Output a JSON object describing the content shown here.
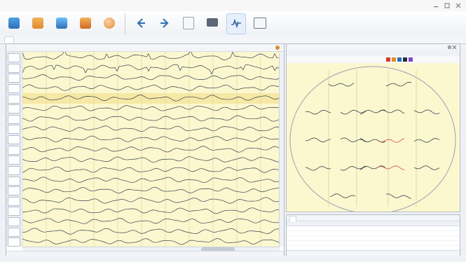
{
  "colors": {
    "accent": "#2f6fb5",
    "paper": "#fbf7cf",
    "highlight": "#f2e18f",
    "trace": "#1f2d3d",
    "trace_red": "#c83b2b",
    "marker_red": "#d13b2d",
    "marker_orange": "#e08a2f"
  },
  "menu": {
    "items": [
      "",
      "",
      "",
      "",
      "",
      "",
      "",
      ""
    ]
  },
  "toolbar": {
    "buttons": [
      {
        "label": "",
        "icon": "study-icon"
      },
      {
        "label": "",
        "icon": "upload-icon"
      },
      {
        "label": "",
        "icon": "report-icon"
      },
      {
        "label": "",
        "icon": "export-icon"
      },
      {
        "label": "",
        "icon": "patient-icon"
      },
      {
        "label": "",
        "icon": "arrow-left-icon"
      },
      {
        "label": "",
        "icon": "arrow-right-icon"
      },
      {
        "label": "",
        "icon": "document-icon"
      },
      {
        "label": "",
        "icon": "printer-icon"
      },
      {
        "label": "",
        "icon": "waveform-icon"
      },
      {
        "label": "",
        "icon": "window-icon"
      }
    ],
    "tab_label": ""
  },
  "eeg": {
    "controls_text": "",
    "channels": [
      "",
      "",
      "",
      "",
      "",
      "",
      "",
      "",
      "",
      "",
      "",
      "",
      "",
      "",
      "",
      "",
      "",
      "",
      ""
    ],
    "selected_channel_index": 4,
    "status_left": "",
    "status_right": ""
  },
  "topo": {
    "title": "",
    "subtitle": "",
    "controls_text": "",
    "scale_label": ""
  },
  "table": {
    "tabs": [
      "",
      ""
    ],
    "headers": [
      "",
      "",
      "",
      "",
      "",
      "",
      "",
      "",
      ""
    ],
    "rows": [
      [
        "",
        "",
        "",
        "",
        "",
        "",
        "",
        "",
        ""
      ],
      [
        "",
        "",
        "",
        "",
        "",
        "",
        "",
        "",
        ""
      ],
      [
        "",
        "",
        "",
        "",
        "",
        "",
        "",
        "",
        ""
      ],
      [
        "",
        "",
        "",
        "",
        "",
        "",
        "",
        "",
        ""
      ],
      [
        "",
        "",
        "",
        "",
        "",
        "",
        "",
        "",
        ""
      ],
      [
        "",
        "",
        "",
        "",
        "",
        "",
        "",
        "",
        ""
      ]
    ],
    "status_text": ""
  }
}
